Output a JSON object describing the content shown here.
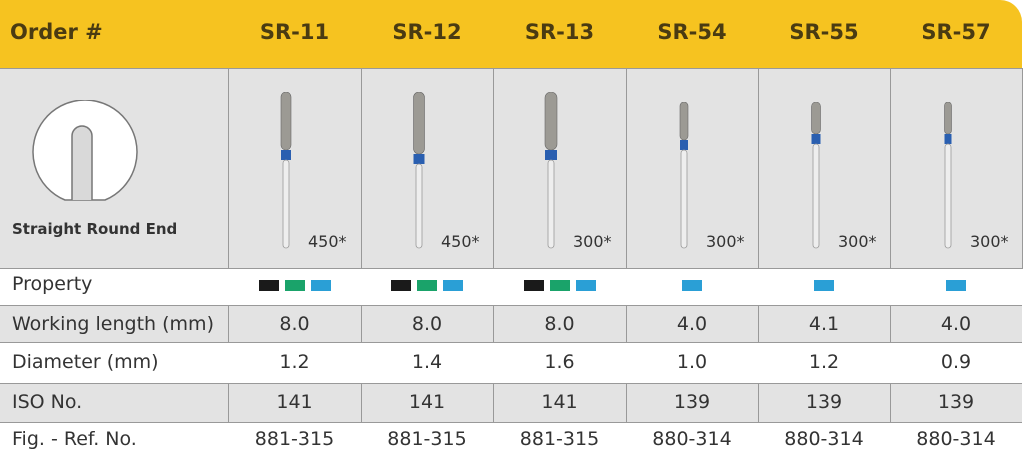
{
  "header": {
    "title": "Order #",
    "columns": [
      "SR-11",
      "SR-12",
      "SR-13",
      "SR-54",
      "SR-55",
      "SR-57"
    ]
  },
  "image_row": {
    "caption": "Straight Round End",
    "labels": [
      "450*",
      "450*",
      "300*",
      "300*",
      "300*",
      "300*"
    ]
  },
  "property": {
    "label": "Property",
    "colors": [
      [
        "#1a1a1a",
        "#1aa36a",
        "#2a9fd6"
      ],
      [
        "#1a1a1a",
        "#1aa36a",
        "#2a9fd6"
      ],
      [
        "#1a1a1a",
        "#1aa36a",
        "#2a9fd6"
      ],
      [
        "#2a9fd6"
      ],
      [
        "#2a9fd6"
      ],
      [
        "#2a9fd6"
      ]
    ]
  },
  "table": {
    "rows": [
      [
        "Working length (mm)",
        "8.0",
        "8.0",
        "8.0",
        "4.0",
        "4.1",
        "4.0"
      ],
      [
        "Diameter (mm)",
        "1.2",
        "1.4",
        "1.6",
        "1.0",
        "1.2",
        "0.9"
      ],
      [
        "ISO No.",
        "141",
        "141",
        "141",
        "139",
        "139",
        "139"
      ],
      [
        "Fig. - Ref. No.",
        "881-315",
        "881-315",
        "881-315",
        "880-314",
        "880-314",
        "880-314"
      ]
    ]
  }
}
